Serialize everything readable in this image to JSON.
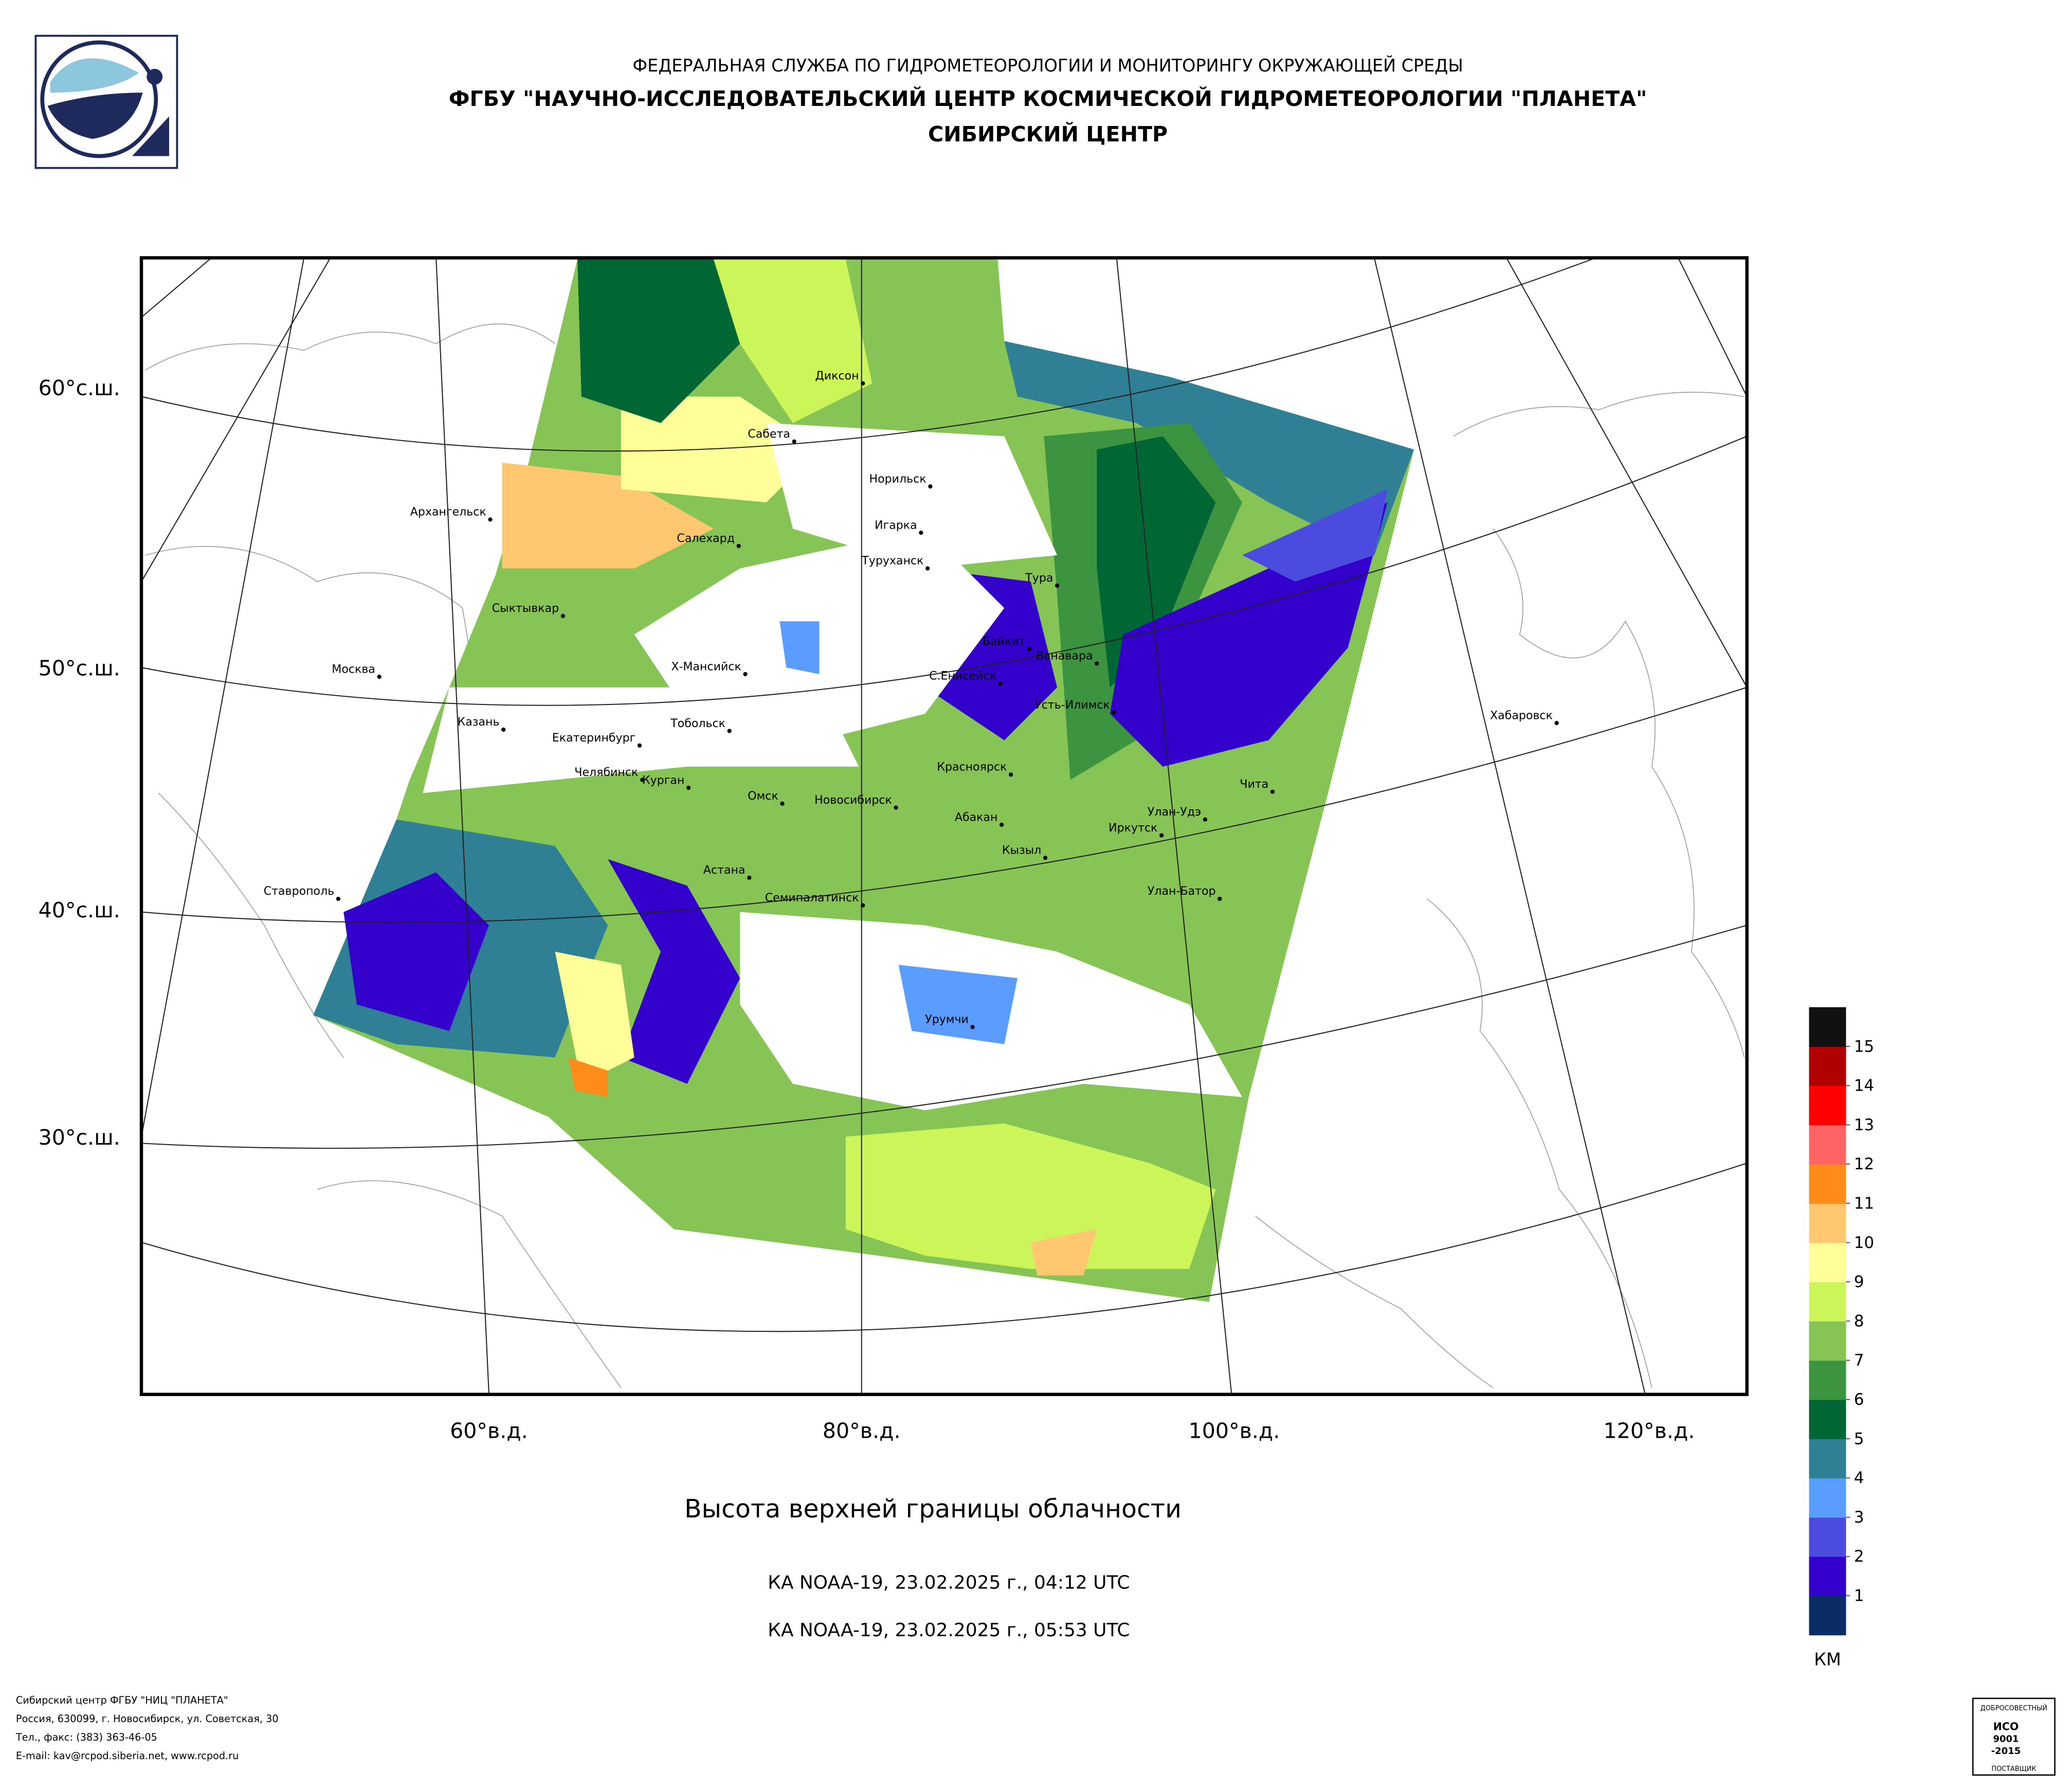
{
  "header": {
    "agency": "ФЕДЕРАЛЬНАЯ СЛУЖБА ПО ГИДРОМЕТЕОРОЛОГИИ И МОНИТОРИНГУ ОКРУЖАЮЩЕЙ СРЕДЫ",
    "institute": "ФГБУ \"НАУЧНО-ИССЛЕДОВАТЕЛЬСКИЙ ЦЕНТР КОСМИЧЕСКОЙ ГИДРОМЕТЕОРОЛОГИИ \"ПЛАНЕТА\"",
    "center": "СИБИРСКИЙ ЦЕНТР"
  },
  "map": {
    "lat_labels": [
      "60°с.ш.",
      "50°с.ш.",
      "40°с.ш.",
      "30°с.ш."
    ],
    "lon_labels": [
      "60°в.д.",
      "80°в.д.",
      "100°в.д.",
      "120°в.д."
    ],
    "cities": [
      "Диксон",
      "Сабета",
      "Норильск",
      "Архангельск",
      "Игарка",
      "Салехард",
      "Туруханск",
      "Тура",
      "Сыктывкар",
      "Байкит",
      "Ванавара",
      "Москва",
      "Х-Мансийск",
      "С.Енисейск",
      "Усть-Илимск",
      "Казань",
      "Тобольск",
      "Хабаровск",
      "Екатеринбург",
      "Красноярск",
      "Челябинск",
      "Курган",
      "Чита",
      "Омск",
      "Новосибирск",
      "Абакан",
      "Улан-Удэ",
      "Иркутск",
      "Кызыл",
      "Астана",
      "Ставрополь",
      "Семипалатинск",
      "Улан-Батор",
      "Урумчи"
    ]
  },
  "title": "Высота верхней границы облачности",
  "passes": [
    "КА NOAA-19, 23.02.2025 г., 04:12 UTC",
    "КА NOAA-19, 23.02.2025 г., 05:53 UTC"
  ],
  "legend": {
    "ticks": [
      1,
      2,
      3,
      4,
      5,
      6,
      7,
      8,
      9,
      10,
      11,
      12,
      13,
      14,
      15
    ],
    "colors": [
      "#0a2d66",
      "#3300cc",
      "#4b4bdf",
      "#5a9cff",
      "#2f8095",
      "#006633",
      "#3d9440",
      "#86c455",
      "#ccf55a",
      "#ffff99",
      "#ffc870",
      "#ff8c1a",
      "#ff6464",
      "#ff0000",
      "#b00000",
      "#111111"
    ],
    "unit": "КМ"
  },
  "footer": [
    "Сибирский центр ФГБУ \"НИЦ \"ПЛАНЕТА\"",
    "Россия, 630099, г. Новосибирск, ул. Советская, 30",
    "Тел., факс: (383) 363-46-05",
    "E-mail: kav@rcpod.siberia.net, www.rcpod.ru"
  ],
  "badge": [
    "ДОБРОСОВЕСТНЫЙ",
    "ИСО",
    "9001",
    "-2015",
    "ПОСТАВЩИК"
  ]
}
